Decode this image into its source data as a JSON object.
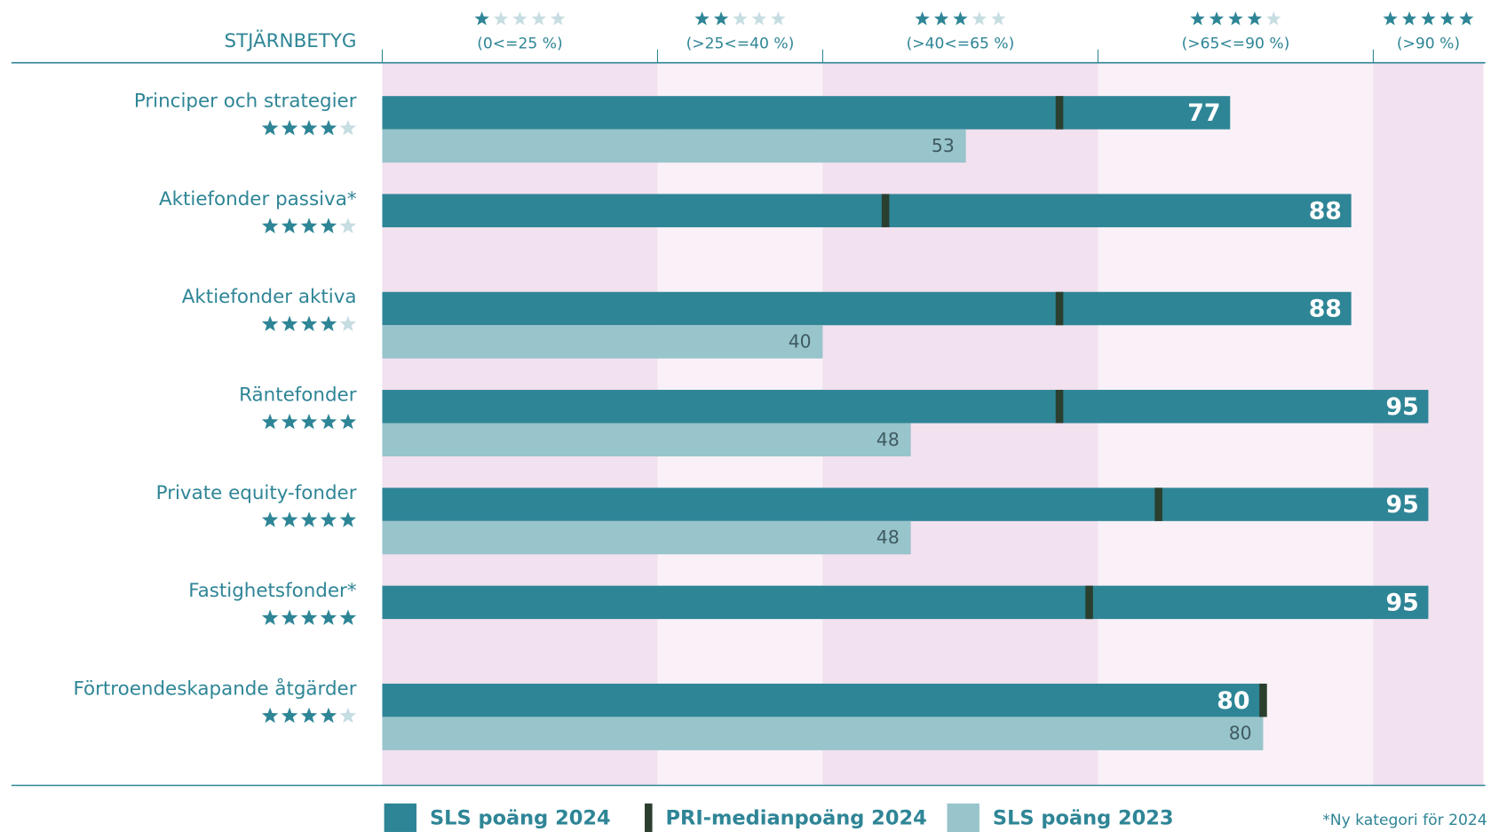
{
  "chart_data": {
    "type": "bar",
    "rating_header": "STJÄRNBETYG",
    "footnote": "*Ny kategori för 2024",
    "categories": [
      "Principer och strategier",
      "Aktiefonder passiva*",
      "Aktiefonder aktiva",
      "Räntefonder",
      "Private equity-fonder",
      "Fastighetsfonder*",
      "Förtroendeskapande åtgärder"
    ],
    "stars": [
      4,
      4,
      4,
      5,
      5,
      5,
      4
    ],
    "max_stars": 5,
    "star_color": "#2e8596",
    "star_empty_color": "#c6dde1",
    "bands": [
      {
        "label": "(0<=25 %)",
        "stars": 1,
        "range": [
          0,
          25
        ],
        "color": "#f2e1ef"
      },
      {
        "label": "(>25<=40 %)",
        "stars": 2,
        "range": [
          25,
          40
        ],
        "color": "#f9f1f7"
      },
      {
        "label": "(>40<=65 %)",
        "stars": 3,
        "range": [
          40,
          65
        ],
        "color": "#f2e1ef"
      },
      {
        "label": "(>65<=90 %)",
        "stars": 4,
        "range": [
          65,
          90
        ],
        "color": "#f9f1f7"
      },
      {
        "label": "(>90 %)",
        "stars": 5,
        "range": [
          90,
          100
        ],
        "color": "#f2e1ef"
      }
    ],
    "xlim": [
      0,
      100
    ],
    "series": [
      {
        "name": "SLS poäng 2024",
        "color": "#2e8596",
        "values": [
          77,
          88,
          88,
          95,
          95,
          95,
          80
        ]
      },
      {
        "name": "PRI-medianpoäng 2024",
        "color": "#2b3f2f",
        "values": [
          61.5,
          45.7,
          61.5,
          61.5,
          70.5,
          64.2,
          80
        ]
      },
      {
        "name": "SLS poäng 2023",
        "color": "#98c4cc",
        "values": [
          53,
          null,
          40,
          48,
          48,
          null,
          80
        ]
      }
    ]
  }
}
